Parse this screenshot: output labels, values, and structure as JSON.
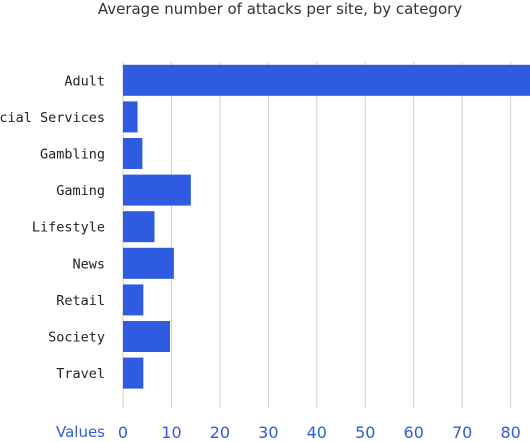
{
  "chart_data": {
    "type": "bar",
    "orientation": "horizontal",
    "title": "Average number of attacks per site, by category",
    "categories": [
      "Adult",
      "Financial Services",
      "Gambling",
      "Gaming",
      "Lifestyle",
      "News",
      "Retail",
      "Society",
      "Travel"
    ],
    "values": [
      84,
      3,
      4,
      14,
      6.5,
      10.5,
      4.2,
      9.7,
      4.2
    ],
    "xlabel": "Values",
    "ylabel": "",
    "xlim": [
      0,
      84
    ],
    "xticks": [
      0,
      10,
      20,
      30,
      40,
      50,
      60,
      70,
      80
    ],
    "grid": true,
    "colors": {
      "bar": "#2e5bdf",
      "grid": "#cfcfcf",
      "axis_text": "#2e5bdf",
      "category_text": "#222222"
    }
  }
}
